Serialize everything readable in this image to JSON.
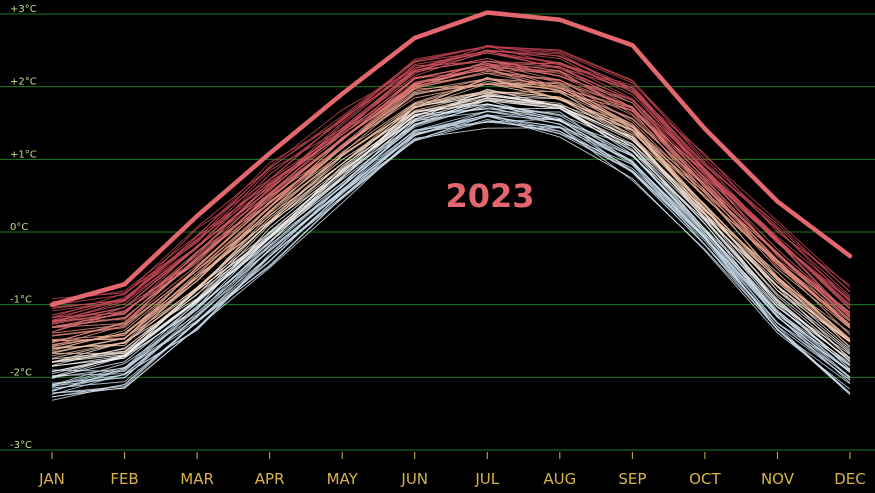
{
  "chart_data": {
    "type": "line",
    "categories": [
      "JAN",
      "FEB",
      "MAR",
      "APR",
      "MAY",
      "JUN",
      "JUL",
      "AUG",
      "SEP",
      "OCT",
      "NOV",
      "DEC"
    ],
    "ylim": [
      -3,
      3
    ],
    "y_ticks": [
      {
        "value": 3,
        "label": "+3°C"
      },
      {
        "value": 2,
        "label": "+2°C"
      },
      {
        "value": 1,
        "label": "+1°C"
      },
      {
        "value": 0,
        "label": "0°C"
      },
      {
        "value": -1,
        "label": "-1°C"
      },
      {
        "value": -2,
        "label": "-2°C"
      },
      {
        "value": -3,
        "label": "-3°C"
      }
    ],
    "grid": true,
    "highlight_series": {
      "name": "2023",
      "values": [
        -1.0,
        -0.72,
        0.22,
        1.08,
        1.9,
        2.67,
        3.02,
        2.92,
        2.57,
        1.42,
        0.42,
        -0.33
      ],
      "color": "#e2676e"
    },
    "annotation": {
      "text": "2023",
      "color": "#e2676e"
    },
    "background_series": {
      "count": 80,
      "coldest_values": [
        -2.3,
        -2.1,
        -1.35,
        -0.45,
        0.45,
        1.25,
        1.5,
        1.35,
        0.78,
        -0.25,
        -1.4,
        -2.2
      ],
      "warmest_values": [
        -1.0,
        -0.85,
        0.0,
        0.85,
        1.6,
        2.35,
        2.55,
        2.45,
        2.05,
        1.05,
        0.1,
        -0.8
      ],
      "color_scale": [
        "#dbe9f6",
        "#c6dcef",
        "#ffffff",
        "#f7c4a6",
        "#e88d7f",
        "#d95a66",
        "#c4414f"
      ]
    },
    "grid_color": "#1f7a1f",
    "tick_color_y": "#b8e08a",
    "tick_color_x": "#d9b24a"
  }
}
